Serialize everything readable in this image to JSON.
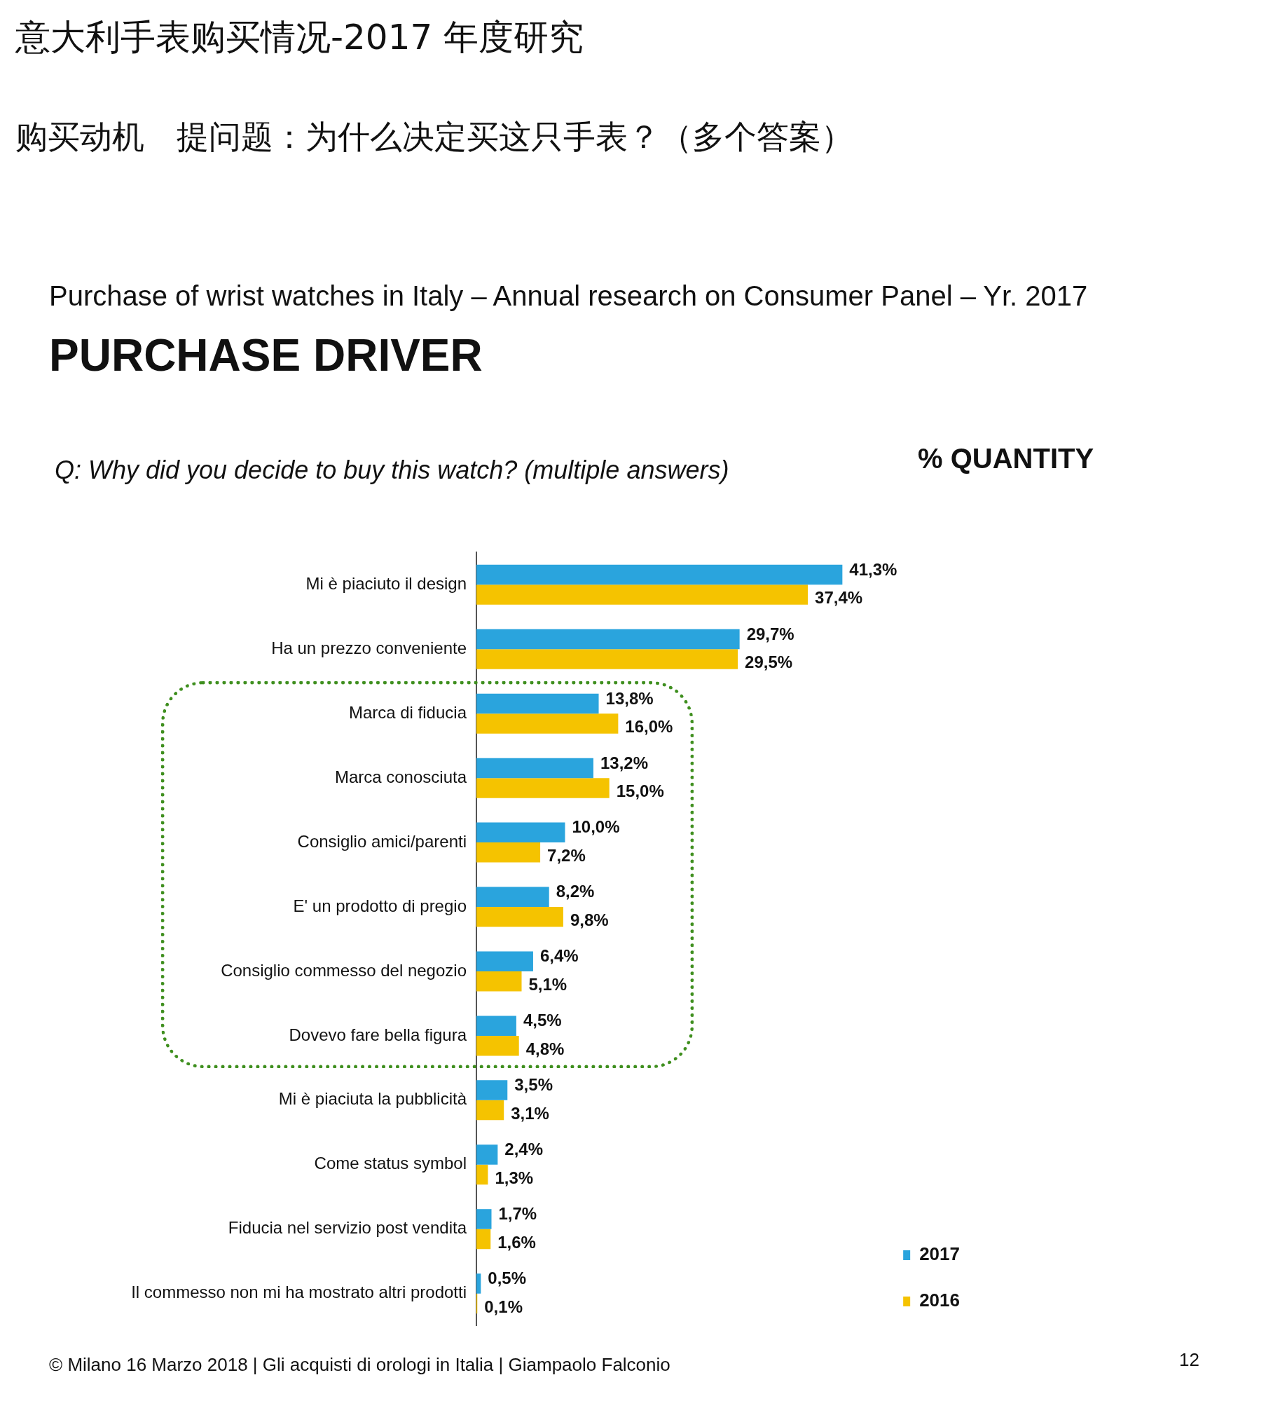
{
  "chart_data": {
    "type": "bar",
    "orientation": "horizontal",
    "title": "意大利手表购买情况-2017 年度研究",
    "subtitle": "购买动机　提问题：为什么决定买这只手表？（多个答案）",
    "annotations": [
      "Purchase of wrist watches in Italy – Annual research on Consumer Panel – Yr. 2017",
      "PURCHASE DRIVER",
      "Q: Why did you decide to buy this watch? (multiple answers)",
      "% QUANTITY",
      "© Milano 16 Marzo 2018 | Gli acquisti di orologi in Italia | Giampaolo Falconio",
      "12"
    ],
    "categories": [
      "Mi è piaciuto il design",
      "Ha un prezzo conveniente",
      "Marca di fiducia",
      "Marca conosciuta",
      "Consiglio amici/parenti",
      "E' un prodotto di pregio",
      "Consiglio commesso del negozio",
      "Dovevo fare bella figura",
      "Mi è piaciuta la pubblicità",
      "Come status symbol",
      "Fiducia nel servizio post vendita",
      "Il commesso non mi ha mostrato altri prodotti"
    ],
    "series": [
      {
        "name": "2017",
        "color": "#2aa4dd",
        "values": [
          41.3,
          29.7,
          13.8,
          13.2,
          10.0,
          8.2,
          6.4,
          4.5,
          3.5,
          2.4,
          1.7,
          0.5
        ],
        "value_labels": [
          "41,3%",
          "29,7%",
          "13,8%",
          "13,2%",
          "10,0%",
          "8,2%",
          "6,4%",
          "4,5%",
          "3,5%",
          "2,4%",
          "1,7%",
          "0,5%"
        ]
      },
      {
        "name": "2016",
        "color": "#f5c300",
        "values": [
          37.4,
          29.5,
          16.0,
          15.0,
          7.2,
          9.8,
          5.1,
          4.8,
          3.1,
          1.3,
          1.6,
          0.1
        ],
        "value_labels": [
          "37,4%",
          "29,5%",
          "16,0%",
          "15,0%",
          "7,2%",
          "9,8%",
          "5,1%",
          "4,8%",
          "3,1%",
          "1,3%",
          "1,6%",
          "0,1%"
        ]
      }
    ],
    "legend": "bottom right"
  }
}
